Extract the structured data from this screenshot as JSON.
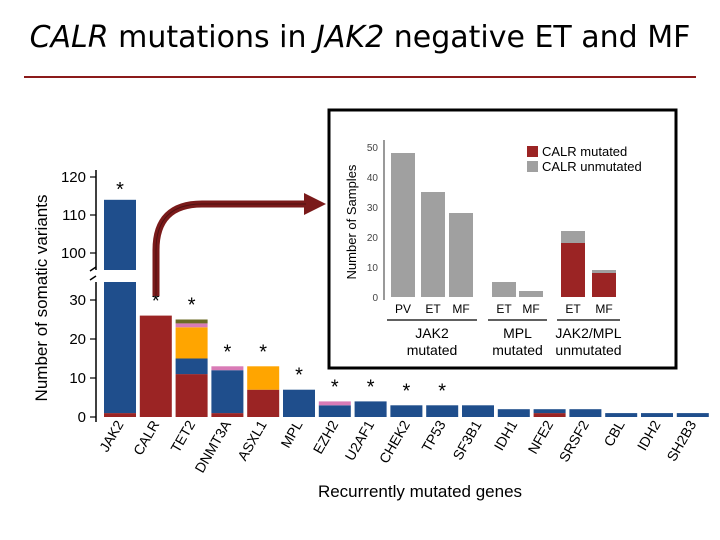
{
  "slide": {
    "title_part1": "CALR",
    "title_part2": " mutations in ",
    "title_part3": "JAK2",
    "title_part4": " negative ET and MF"
  },
  "colors": {
    "blue": "#1f4e8c",
    "red": "#9b2424",
    "orange": "#ffa500",
    "pink": "#d97bb6",
    "olive": "#6b6b26",
    "gray": "#a0a0a0",
    "arrow": "#7a1a1a"
  },
  "chart_data": [
    {
      "type": "bar",
      "stacked": true,
      "broken_axis": true,
      "xlabel": "Recurrently mutated genes",
      "ylabel": "Number of somatic variants",
      "yticks_lower": [
        0,
        10,
        20,
        30
      ],
      "yticks_upper": [
        100,
        110,
        120
      ],
      "categories": [
        "JAK2",
        "CALR",
        "TET2",
        "DNMT3A",
        "ASXL1",
        "MPL",
        "EZH2",
        "U2AF1",
        "CHEK2",
        "TP53",
        "SF3B1",
        "IDH1",
        "NFE2",
        "SRSF2",
        "CBL",
        "IDH2",
        "SH2B3"
      ],
      "significant": [
        true,
        true,
        true,
        true,
        true,
        true,
        true,
        true,
        true,
        true,
        false,
        false,
        false,
        false,
        false,
        false,
        false
      ],
      "star_label": "*",
      "series": [
        {
          "name": "red",
          "color": "red",
          "values": [
            1,
            26,
            11,
            1,
            7,
            0,
            0,
            0,
            0,
            0,
            0,
            0,
            1,
            0,
            0,
            0,
            0
          ]
        },
        {
          "name": "blue",
          "color": "blue",
          "values": [
            113,
            0,
            4,
            11,
            0,
            7,
            3,
            4,
            3,
            3,
            3,
            2,
            1,
            2,
            1,
            1,
            1
          ]
        },
        {
          "name": "orange",
          "color": "orange",
          "values": [
            0,
            0,
            8,
            0,
            6,
            0,
            0,
            0,
            0,
            0,
            0,
            0,
            0,
            0,
            0,
            0,
            0
          ]
        },
        {
          "name": "pink",
          "color": "pink",
          "values": [
            0,
            0,
            1,
            1,
            0,
            0,
            1,
            0,
            0,
            0,
            0,
            0,
            0,
            0,
            0,
            0,
            0
          ]
        },
        {
          "name": "olive",
          "color": "olive",
          "values": [
            0,
            0,
            1,
            0,
            0,
            0,
            0,
            0,
            0,
            0,
            0,
            0,
            0,
            0,
            0,
            0,
            0
          ]
        }
      ]
    },
    {
      "type": "bar",
      "stacked": true,
      "ylabel": "Number of Samples",
      "yticks": [
        0,
        10,
        20,
        30,
        40,
        50
      ],
      "legend": [
        "CALR mutated",
        "CALR unmutated"
      ],
      "legend_position": "top-right",
      "categories": [
        "PV",
        "ET",
        "MF",
        "ET",
        "MF",
        "ET",
        "MF"
      ],
      "groups": [
        {
          "label_line1": "JAK2",
          "label_line2": "mutated",
          "members": [
            0,
            1,
            2
          ]
        },
        {
          "label_line1": "MPL",
          "label_line2": "mutated",
          "members": [
            3,
            4
          ]
        },
        {
          "label_line1": "JAK2/MPL",
          "label_line2": "unmutated",
          "members": [
            5,
            6
          ]
        }
      ],
      "series": [
        {
          "name": "CALR mutated",
          "color": "red",
          "values": [
            0,
            0,
            0,
            0,
            0,
            18,
            8
          ]
        },
        {
          "name": "CALR unmutated",
          "color": "gray",
          "values": [
            48,
            35,
            28,
            5,
            2,
            4,
            1
          ]
        }
      ]
    }
  ]
}
